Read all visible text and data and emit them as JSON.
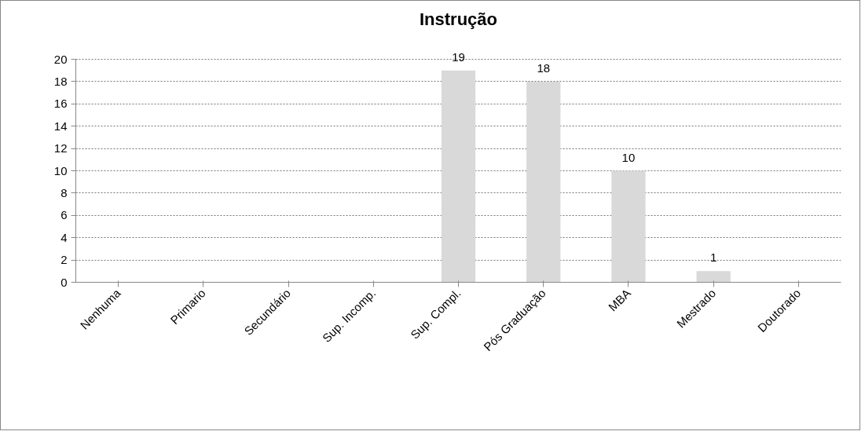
{
  "chart_data": {
    "type": "bar",
    "title": "Instrução",
    "categories": [
      "Nenhuma",
      "Primario",
      "Secundário",
      "Sup. Incomp.",
      "Sup. Compl.",
      "Pós Graduação",
      "MBA",
      "Mestrado",
      "Doutorado"
    ],
    "values": [
      0,
      0,
      0,
      0,
      19,
      18,
      10,
      1,
      0
    ],
    "value_labels": [
      null,
      null,
      null,
      null,
      "19",
      "18",
      "10",
      "1",
      null
    ],
    "color": "#d9d9d9",
    "ylim": [
      0,
      20
    ],
    "yticks": [
      0,
      2,
      4,
      6,
      8,
      10,
      12,
      14,
      16,
      18,
      20
    ],
    "grid": "y"
  }
}
